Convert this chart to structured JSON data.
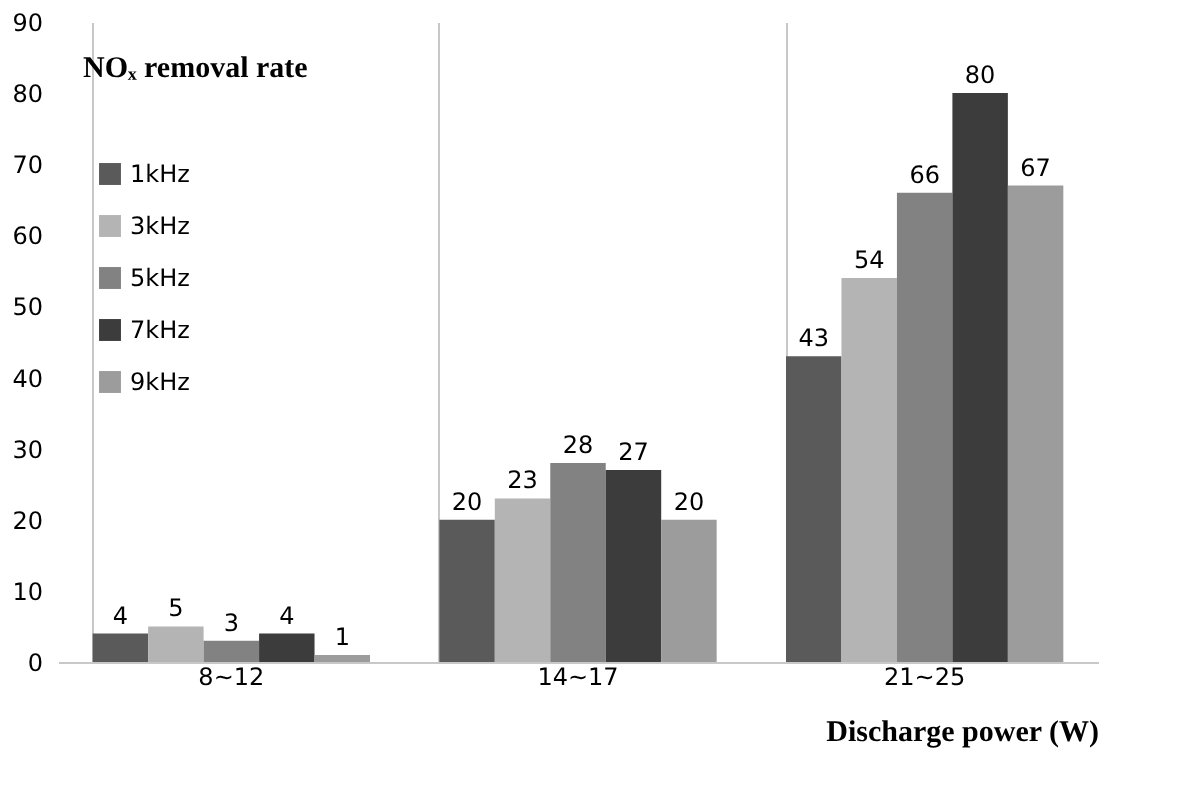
{
  "chart_data": {
    "type": "bar",
    "ylabel": "NOₓ removal rate",
    "xlabel": "Discharge power (W)",
    "categories": [
      "8~12",
      "14~17",
      "21~25"
    ],
    "series": [
      {
        "name": "1kHz",
        "color": "#5a5a5a",
        "values": [
          4,
          20,
          43
        ]
      },
      {
        "name": "3kHz",
        "color": "#b4b4b4",
        "values": [
          5,
          23,
          54
        ]
      },
      {
        "name": "5kHz",
        "color": "#828282",
        "values": [
          3,
          28,
          66
        ]
      },
      {
        "name": "7kHz",
        "color": "#3c3c3c",
        "values": [
          4,
          27,
          80
        ]
      },
      {
        "name": "9kHz",
        "color": "#9c9c9c",
        "values": [
          1,
          20,
          67
        ]
      }
    ],
    "ylim": [
      0,
      90
    ],
    "yticks": [
      0,
      10,
      20,
      30,
      40,
      50,
      60,
      70,
      80,
      90
    ],
    "data_labels": true,
    "grid": "x",
    "legend": "top left"
  }
}
